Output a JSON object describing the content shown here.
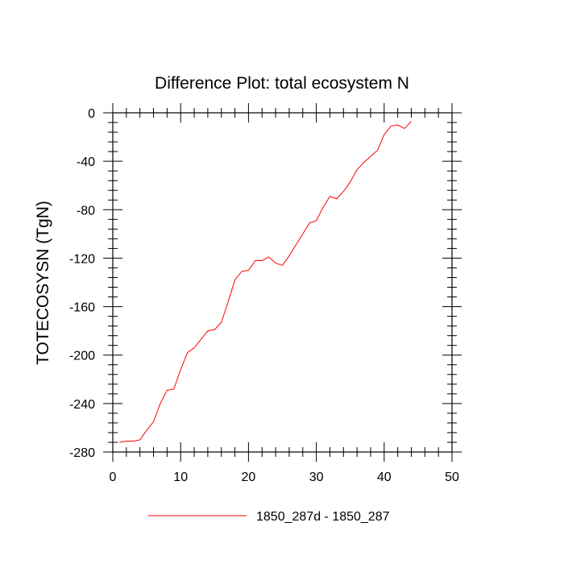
{
  "chart_data": {
    "type": "line",
    "title": "Difference Plot: total ecosystem N",
    "xlabel": "",
    "ylabel": "TOTECOSYSN  (TgN)",
    "xlim": [
      0,
      50
    ],
    "ylim": [
      -280,
      0
    ],
    "x_ticks": [
      0,
      10,
      20,
      30,
      40,
      50
    ],
    "y_ticks": [
      0,
      -40,
      -80,
      -120,
      -160,
      -200,
      -240,
      -280
    ],
    "x_minor_step": 2,
    "y_minor_step": 8,
    "grid": false,
    "legend_position": "bottom-center",
    "series": [
      {
        "name": "1850_287d - 1850_287",
        "color": "#ff0000",
        "x": [
          1,
          2,
          3,
          4,
          5,
          6,
          7,
          8,
          9,
          10,
          11,
          12,
          13,
          14,
          15,
          16,
          17,
          18,
          19,
          20,
          21,
          22,
          23,
          24,
          25,
          26,
          27,
          28,
          29,
          30,
          31,
          32,
          33,
          34,
          35,
          36,
          37,
          38,
          39,
          40,
          41,
          42,
          43,
          44
        ],
        "y": [
          -272,
          -271,
          -271,
          -270,
          -262,
          -255,
          -240,
          -229,
          -228,
          -212,
          -198,
          -194,
          -187,
          -180,
          -179,
          -173,
          -156,
          -138,
          -131,
          -130,
          -122,
          -122,
          -119,
          -124,
          -126,
          -118,
          -109,
          -100,
          -91,
          -89,
          -78,
          -69,
          -71,
          -65,
          -57,
          -47,
          -41,
          -36,
          -31,
          -18,
          -11,
          -10,
          -13,
          -7
        ]
      }
    ]
  }
}
